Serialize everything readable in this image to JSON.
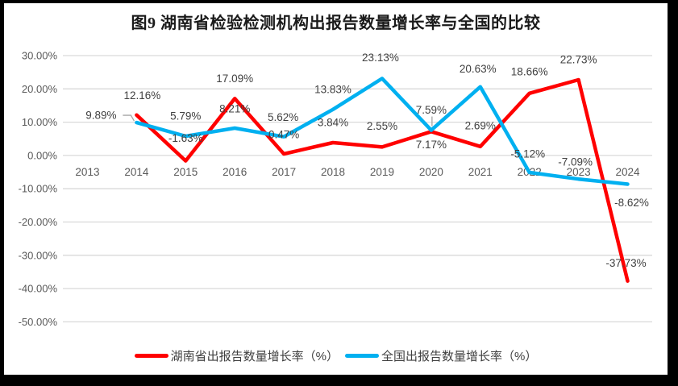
{
  "frame": {
    "background": "#000000",
    "canvas_background": "#ffffff"
  },
  "chart_data": {
    "type": "line",
    "title": "图9 湖南省检验检测机构出报告数量增长率与全国的比较",
    "categories": [
      "2013",
      "2014",
      "2015",
      "2016",
      "2017",
      "2018",
      "2019",
      "2020",
      "2021",
      "2022",
      "2023",
      "2024"
    ],
    "series": [
      {
        "name": "湖南省出报告数量增长率（%）",
        "color": "#FF0000",
        "values": [
          null,
          12.16,
          -1.63,
          17.09,
          0.47,
          3.84,
          2.55,
          7.17,
          2.69,
          18.66,
          22.73,
          -37.73
        ],
        "labels": [
          null,
          "12.16%",
          "-1.63%",
          "17.09%",
          "0.47%",
          "3.84%",
          "2.55%",
          "7.17%",
          "2.69%",
          "18.66%",
          "22.73%",
          "-37.73%"
        ],
        "label_offsets": [
          null,
          [
            7,
            -24
          ],
          [
            0,
            -28
          ],
          [
            0,
            -25
          ],
          [
            0,
            -24
          ],
          [
            0,
            -25
          ],
          [
            0,
            -26
          ],
          [
            0,
            16
          ],
          [
            0,
            -26
          ],
          [
            0,
            -27
          ],
          [
            0,
            -25
          ],
          [
            -2,
            -22
          ]
        ]
      },
      {
        "name": "全国出报告数量增长率（%）",
        "color": "#00B0F0",
        "values": [
          null,
          9.89,
          5.79,
          8.21,
          5.62,
          13.83,
          23.13,
          7.59,
          20.63,
          -5.12,
          -7.09,
          -8.62
        ],
        "labels": [
          null,
          "9.89%",
          "5.79%",
          "8.21%",
          "5.62%",
          "13.83%",
          "23.13%",
          "7.59%",
          "20.63%",
          "-5.12%",
          "-7.09%",
          "-8.62%"
        ],
        "label_offsets": [
          null,
          [
            -44,
            -9
          ],
          [
            0,
            -25
          ],
          [
            0,
            -24
          ],
          [
            -1,
            -24
          ],
          [
            0,
            -25
          ],
          [
            -2,
            -26
          ],
          [
            0,
            -25
          ],
          [
            -3,
            -22
          ],
          [
            -2,
            -23
          ],
          [
            -4,
            -21
          ],
          [
            5,
            23
          ]
        ],
        "leaders": {
          "1": "bent",
          "7": "vertical"
        }
      }
    ],
    "y_axis": {
      "min": -50,
      "max": 30,
      "step": 10,
      "tick_labels": [
        "30.00%",
        "20.00%",
        "10.00%",
        "0.00%",
        "-10.00%",
        "-20.00%",
        "-30.00%",
        "-40.00%",
        "-50.00%"
      ]
    },
    "grid": true,
    "legend_position": "bottom",
    "colors": {
      "grid": "#D9D9D9",
      "axis_text": "#595959",
      "data_label": "#404040",
      "leader": "#A6A6A6",
      "title": "#1a1a1a",
      "legend_text": "#404040"
    }
  }
}
